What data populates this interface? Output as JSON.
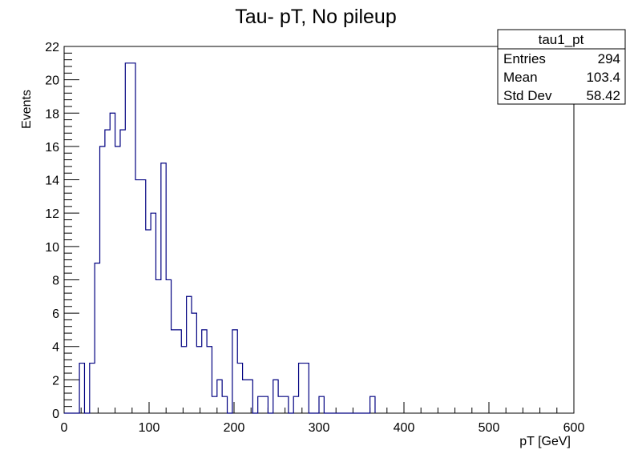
{
  "chart_data": {
    "type": "histogram",
    "title": "Tau- pT, No pileup",
    "xlabel": "pT [GeV]",
    "ylabel": "Events",
    "xlim": [
      0,
      600
    ],
    "ylim": [
      0,
      22
    ],
    "x_ticks": [
      0,
      100,
      200,
      300,
      400,
      500,
      600
    ],
    "y_ticks": [
      0,
      2,
      4,
      6,
      8,
      10,
      12,
      14,
      16,
      18,
      20,
      22
    ],
    "bin_width": 6,
    "bin_start": 0,
    "line_color": "#000080",
    "counts": [
      0,
      0,
      0,
      3,
      0,
      3,
      9,
      16,
      17,
      18,
      16,
      17,
      21,
      21,
      14,
      14,
      11,
      12,
      8,
      15,
      8,
      5,
      5,
      4,
      7,
      6,
      4,
      5,
      4,
      1,
      2,
      1,
      0,
      5,
      3,
      2,
      2,
      0,
      1,
      1,
      0,
      2,
      1,
      1,
      0,
      1,
      3,
      3,
      0,
      0,
      1,
      0,
      0,
      0,
      0,
      0,
      0,
      0,
      0,
      0,
      1
    ],
    "stats_box": {
      "title": "tau1_pt",
      "rows": [
        {
          "label": "Entries",
          "value": "294"
        },
        {
          "label": "Mean",
          "value": "103.4"
        },
        {
          "label": "Std Dev",
          "value": "58.42"
        }
      ]
    }
  }
}
